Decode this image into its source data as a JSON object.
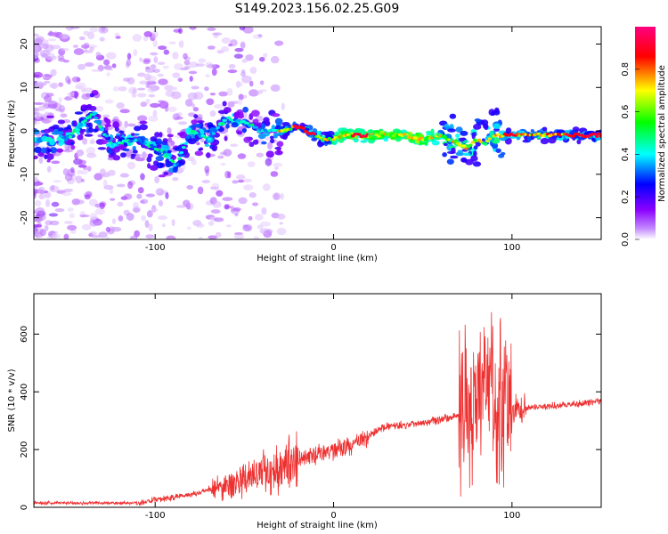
{
  "chart_data": [
    {
      "type": "heatmap",
      "title": "S149.2023.156.02.25.G09",
      "xlabel": "Height of straight line (km)",
      "ylabel": "Frequency (Hz)",
      "xlim": [
        -168,
        150
      ],
      "ylim": [
        -25,
        24
      ],
      "xticks": [
        -100,
        0,
        100
      ],
      "yticks": [
        -20,
        -10,
        0,
        10,
        20
      ],
      "colorbar": {
        "label": "Normalized spectral amplitude",
        "range": [
          0,
          1
        ],
        "ticks": [
          0.0,
          0.2,
          0.4,
          0.6,
          0.8
        ],
        "colormap": [
          "#ffffff",
          "#8a00ff",
          "#0000ff",
          "#00ffff",
          "#00ff00",
          "#ffff00",
          "#ff0000",
          "#ff0080"
        ]
      },
      "ridge": {
        "x": [
          -150,
          -135,
          -125,
          -110,
          -100,
          -95,
          -88,
          -80,
          -70,
          -60,
          -50,
          -40,
          -30,
          -20,
          -10,
          -5,
          0,
          5,
          10,
          20,
          30,
          40,
          50,
          60,
          65,
          70,
          75,
          80,
          85,
          90,
          95,
          100,
          110,
          120,
          130,
          140,
          150
        ],
        "y": [
          -2,
          4,
          -3,
          -2,
          -4,
          -5,
          -8,
          0,
          -2,
          3,
          2,
          0,
          0,
          1,
          -1,
          -2,
          -2,
          -1,
          -1,
          -1,
          -1,
          -1,
          -2,
          -1,
          -2,
          -3,
          -4,
          -2,
          -3,
          -1,
          -1,
          -1,
          -1,
          -1,
          -1,
          -1,
          -1
        ]
      }
    },
    {
      "type": "line",
      "xlabel": "Height of straight line (km)",
      "ylabel": "SNR (10 * v/v)",
      "xlim": [
        -168,
        150
      ],
      "ylim": [
        0,
        740
      ],
      "xticks": [
        -100,
        0,
        100
      ],
      "yticks": [
        0,
        200,
        400,
        600
      ],
      "color": "#ee3030",
      "series": [
        {
          "x": [
            -168,
            -150,
            -130,
            -110,
            -90,
            -80,
            -70,
            -60,
            -50,
            -40,
            -30,
            -20,
            -10,
            0,
            10,
            20,
            25,
            30,
            40,
            50,
            60,
            65,
            70,
            75,
            80,
            85,
            90,
            95,
            100,
            105,
            110,
            120,
            130,
            140,
            150
          ],
          "y": [
            15,
            15,
            15,
            15,
            35,
            45,
            60,
            75,
            95,
            120,
            140,
            165,
            180,
            200,
            215,
            245,
            270,
            280,
            285,
            295,
            305,
            310,
            320,
            350,
            380,
            400,
            380,
            360,
            340,
            340,
            345,
            350,
            355,
            360,
            370
          ]
        }
      ]
    }
  ]
}
